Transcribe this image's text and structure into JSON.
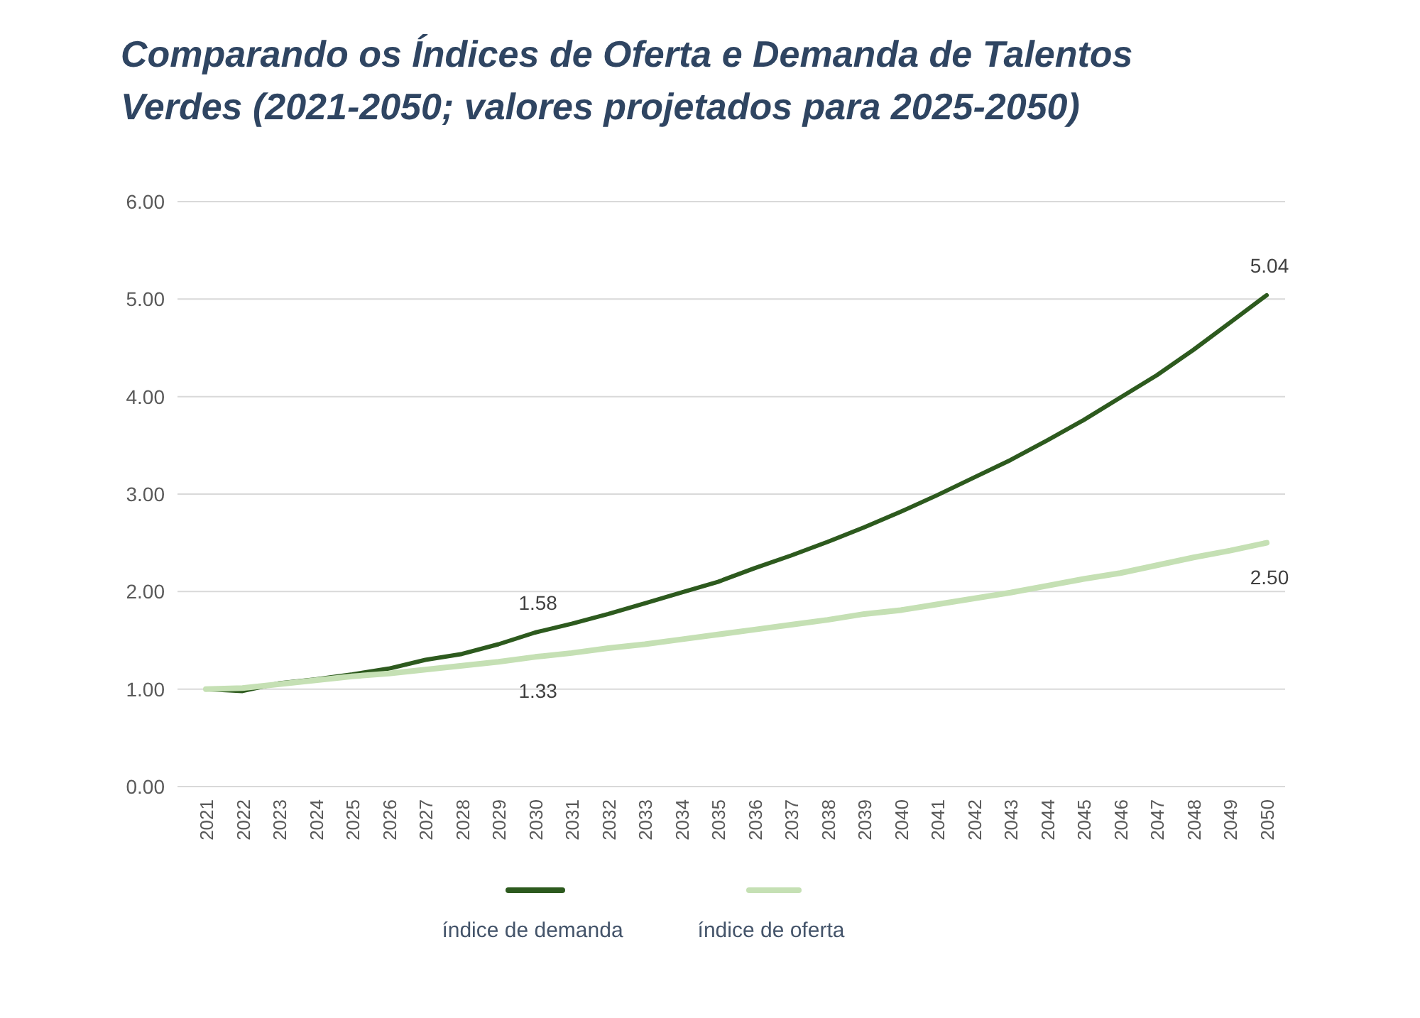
{
  "chart_data": {
    "type": "line",
    "title": "Comparando os Índices de Oferta e Demanda de Talentos Verdes (2021-2050; valores projetados para 2025-2050)",
    "categories": [
      "2021",
      "2022",
      "2023",
      "2024",
      "2025",
      "2026",
      "2027",
      "2028",
      "2029",
      "2030",
      "2031",
      "2032",
      "2033",
      "2034",
      "2035",
      "2036",
      "2037",
      "2038",
      "2039",
      "2040",
      "2041",
      "2042",
      "2043",
      "2044",
      "2045",
      "2046",
      "2047",
      "2048",
      "2049",
      "2050"
    ],
    "series": [
      {
        "name": "índice de demanda",
        "color": "#2d5a1e",
        "values": [
          1.0,
          0.98,
          1.06,
          1.1,
          1.15,
          1.21,
          1.3,
          1.36,
          1.46,
          1.58,
          1.67,
          1.77,
          1.88,
          1.99,
          2.1,
          2.24,
          2.37,
          2.51,
          2.66,
          2.82,
          2.99,
          3.17,
          3.35,
          3.55,
          3.76,
          3.99,
          4.22,
          4.48,
          4.76,
          5.04
        ],
        "value_labels": [
          null,
          null,
          null,
          null,
          null,
          null,
          null,
          null,
          null,
          "1.58",
          null,
          null,
          null,
          null,
          null,
          null,
          null,
          null,
          null,
          null,
          null,
          null,
          null,
          null,
          null,
          null,
          null,
          null,
          null,
          "5.04"
        ]
      },
      {
        "name": "índice de oferta",
        "color": "#c5e0b4",
        "values": [
          1.0,
          1.01,
          1.05,
          1.09,
          1.13,
          1.16,
          1.2,
          1.24,
          1.28,
          1.33,
          1.37,
          1.42,
          1.46,
          1.51,
          1.56,
          1.61,
          1.66,
          1.71,
          1.77,
          1.81,
          1.87,
          1.93,
          1.99,
          2.06,
          2.13,
          2.19,
          2.27,
          2.35,
          2.42,
          2.5
        ],
        "value_labels": [
          null,
          null,
          null,
          null,
          null,
          null,
          null,
          null,
          null,
          "1.33",
          null,
          null,
          null,
          null,
          null,
          null,
          null,
          null,
          null,
          null,
          null,
          null,
          null,
          null,
          null,
          null,
          null,
          null,
          null,
          "2.50"
        ]
      }
    ],
    "ylim": [
      0,
      6
    ],
    "yticks": [
      {
        "value": 0,
        "label": "0.00"
      },
      {
        "value": 1,
        "label": "1.00"
      },
      {
        "value": 2,
        "label": "2.00"
      },
      {
        "value": 3,
        "label": "3.00"
      },
      {
        "value": 4,
        "label": "4.00"
      },
      {
        "value": 5,
        "label": "5.00"
      },
      {
        "value": 6,
        "label": "6.00"
      }
    ],
    "grid": "y",
    "legend": "bottom"
  }
}
